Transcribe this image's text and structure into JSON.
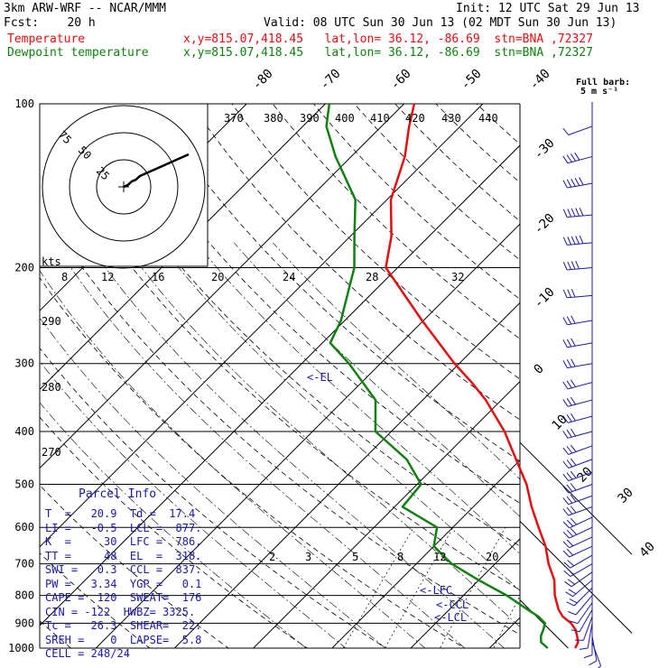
{
  "header": {
    "model": "3km ARW-WRF -- NCAR/MMM",
    "init": "Init: 12 UTC Sat 29 Jun 13",
    "fcst": "Fcst:    20 h",
    "valid": "Valid: 08 UTC Sun 30 Jun 13 (02 MDT Sun 30 Jun 13)",
    "temp_label": "Temperature",
    "temp_loc": "x,y=815.07,418.45   lat,lon= 36.12, -86.69  stn=BNA ,72327",
    "dew_label": "Dewpoint temperature",
    "dew_loc": "x,y=815.07,418.45   lat,lon= 36.12, -86.69  stn=BNA ,72327"
  },
  "colors": {
    "temperature": "#e01010",
    "dewpoint": "#108010",
    "annot": "#1a1aa0",
    "wind": "#1a1aa0"
  },
  "chart_data": {
    "type": "line",
    "series": [
      {
        "name": "Temperature",
        "points": [
          [
            1000,
            20.9
          ],
          [
            975,
            20.5
          ],
          [
            950,
            19.6
          ],
          [
            925,
            18.6
          ],
          [
            900,
            17.2
          ],
          [
            875,
            15.3
          ],
          [
            850,
            13.9
          ],
          [
            800,
            11.6
          ],
          [
            750,
            9.6
          ],
          [
            700,
            6.8
          ],
          [
            650,
            4.2
          ],
          [
            600,
            0.9
          ],
          [
            550,
            -2.6
          ],
          [
            500,
            -6.1
          ],
          [
            450,
            -10.6
          ],
          [
            400,
            -15.6
          ],
          [
            350,
            -22.0
          ],
          [
            325,
            -26.0
          ],
          [
            300,
            -30.6
          ],
          [
            250,
            -40.2
          ],
          [
            200,
            -51.5
          ],
          [
            175,
            -54.8
          ],
          [
            150,
            -59.5
          ],
          [
            125,
            -63.2
          ],
          [
            110,
            -66.5
          ],
          [
            100,
            -68.7
          ]
        ]
      },
      {
        "name": "Dewpoint temperature",
        "points": [
          [
            1000,
            17.4
          ],
          [
            975,
            15.8
          ],
          [
            950,
            15.0
          ],
          [
            925,
            14.5
          ],
          [
            900,
            13.9
          ],
          [
            875,
            12.2
          ],
          [
            850,
            10.0
          ],
          [
            800,
            5.5
          ],
          [
            750,
            0.0
          ],
          [
            700,
            -5.5
          ],
          [
            650,
            -10.0
          ],
          [
            600,
            -12.0
          ],
          [
            550,
            -19.0
          ],
          [
            500,
            -19.5
          ],
          [
            450,
            -24.5
          ],
          [
            400,
            -32.0
          ],
          [
            350,
            -36.0
          ],
          [
            300,
            -44.0
          ],
          [
            275,
            -49.0
          ],
          [
            250,
            -50.5
          ],
          [
            200,
            -55.5
          ],
          [
            175,
            -59.5
          ],
          [
            150,
            -64.0
          ],
          [
            125,
            -72.0
          ],
          [
            110,
            -77.0
          ],
          [
            100,
            -79.5
          ]
        ]
      }
    ],
    "pressure_ticks": [
      "100",
      "200",
      "300",
      "400",
      "500",
      "600",
      "700",
      "800",
      "900",
      "1000"
    ],
    "pressure_levels": [
      100,
      200,
      300,
      400,
      500,
      600,
      700,
      800,
      900,
      1000
    ],
    "temp_ticks": [
      {
        "t": -80,
        "label": "-80"
      },
      {
        "t": -70,
        "label": "-70"
      },
      {
        "t": -60,
        "label": "-60"
      },
      {
        "t": -50,
        "label": "-50"
      },
      {
        "t": -40,
        "label": "-40"
      },
      {
        "t": -30,
        "label": "-30"
      },
      {
        "t": -20,
        "label": "-20"
      },
      {
        "t": -10,
        "label": "-10"
      },
      {
        "t": 0,
        "label": "0"
      },
      {
        "t": 10,
        "label": "10"
      },
      {
        "t": 20,
        "label": "20"
      },
      {
        "t": 30,
        "label": "30"
      },
      {
        "t": 40,
        "label": "40"
      }
    ],
    "theta_labels": [
      "370",
      "380",
      "390",
      "400",
      "410",
      "420",
      "430",
      "440"
    ],
    "mixing_labels": [
      "2",
      "3",
      "5",
      "8",
      "12",
      "20"
    ],
    "upper_mixing_labels": [
      "8",
      "12",
      "16",
      "20",
      "24",
      "28",
      "32"
    ],
    "theta_side_labels": [
      "290",
      "280",
      "270"
    ],
    "annotations": [
      {
        "label": "<-EL",
        "p": 318
      },
      {
        "label": "<-LFC",
        "p": 786
      },
      {
        "label": "<-CCL",
        "p": 837
      },
      {
        "label": "<-LCL",
        "p": 877
      }
    ],
    "hodograph": {
      "units": "kts",
      "ring_labels": [
        "75",
        "50",
        "25"
      ],
      "trace": [
        [
          0,
          0
        ],
        [
          2,
          1
        ],
        [
          4,
          3
        ],
        [
          6,
          4
        ],
        [
          8,
          6
        ],
        [
          12,
          8
        ],
        [
          16,
          10
        ],
        [
          22,
          13
        ],
        [
          28,
          16
        ],
        [
          32,
          18
        ]
      ]
    },
    "wind_barbs_title": "Full barb:",
    "wind_barbs_unit": "5 m s⁻¹",
    "wind_barbs": [
      {
        "p": 110,
        "dir": 250,
        "spd": 5
      },
      {
        "p": 125,
        "dir": 255,
        "spd": 20
      },
      {
        "p": 140,
        "dir": 260,
        "spd": 25
      },
      {
        "p": 160,
        "dir": 265,
        "spd": 25
      },
      {
        "p": 180,
        "dir": 265,
        "spd": 25
      },
      {
        "p": 200,
        "dir": 265,
        "spd": 20
      },
      {
        "p": 225,
        "dir": 265,
        "spd": 15
      },
      {
        "p": 250,
        "dir": 260,
        "spd": 15
      },
      {
        "p": 275,
        "dir": 260,
        "spd": 15
      },
      {
        "p": 300,
        "dir": 260,
        "spd": 15
      },
      {
        "p": 325,
        "dir": 255,
        "spd": 15
      },
      {
        "p": 350,
        "dir": 255,
        "spd": 15
      },
      {
        "p": 375,
        "dir": 255,
        "spd": 15
      },
      {
        "p": 400,
        "dir": 255,
        "spd": 15
      },
      {
        "p": 425,
        "dir": 250,
        "spd": 15
      },
      {
        "p": 450,
        "dir": 250,
        "spd": 15
      },
      {
        "p": 475,
        "dir": 250,
        "spd": 15
      },
      {
        "p": 500,
        "dir": 250,
        "spd": 15
      },
      {
        "p": 525,
        "dir": 250,
        "spd": 15
      },
      {
        "p": 550,
        "dir": 250,
        "spd": 15
      },
      {
        "p": 575,
        "dir": 245,
        "spd": 15
      },
      {
        "p": 600,
        "dir": 245,
        "spd": 15
      },
      {
        "p": 625,
        "dir": 245,
        "spd": 10
      },
      {
        "p": 650,
        "dir": 245,
        "spd": 10
      },
      {
        "p": 675,
        "dir": 240,
        "spd": 10
      },
      {
        "p": 700,
        "dir": 240,
        "spd": 10
      },
      {
        "p": 725,
        "dir": 235,
        "spd": 10
      },
      {
        "p": 750,
        "dir": 230,
        "spd": 10
      },
      {
        "p": 775,
        "dir": 225,
        "spd": 10
      },
      {
        "p": 800,
        "dir": 220,
        "spd": 5
      },
      {
        "p": 825,
        "dir": 215,
        "spd": 5
      },
      {
        "p": 850,
        "dir": 210,
        "spd": 5
      },
      {
        "p": 875,
        "dir": 200,
        "spd": 5
      },
      {
        "p": 900,
        "dir": 190,
        "spd": 5
      },
      {
        "p": 925,
        "dir": 180,
        "spd": 5
      },
      {
        "p": 950,
        "dir": 170,
        "spd": 5
      },
      {
        "p": 975,
        "dir": 160,
        "spd": 5
      }
    ]
  },
  "parcel": {
    "title": "Parcel Info",
    "rows": [
      "T  =   20.9  Td =  17.4",
      "LI =   -0.5  LCL =  877.",
      "K  =     30  LFC =  786.",
      "TT =     48  EL  =  318.",
      "SWI =   0.3  CCL =  837.",
      "PW =   3.34  YGP =   0.1",
      "CAPE =  120  SWEAT=  176",
      "CIN = -122  HWBZ= 3325.",
      "Tc =   26.3  SHEAR=  22.",
      "SREH =    0  LAPSE=  5.8",
      "CELL = 248/24"
    ]
  }
}
